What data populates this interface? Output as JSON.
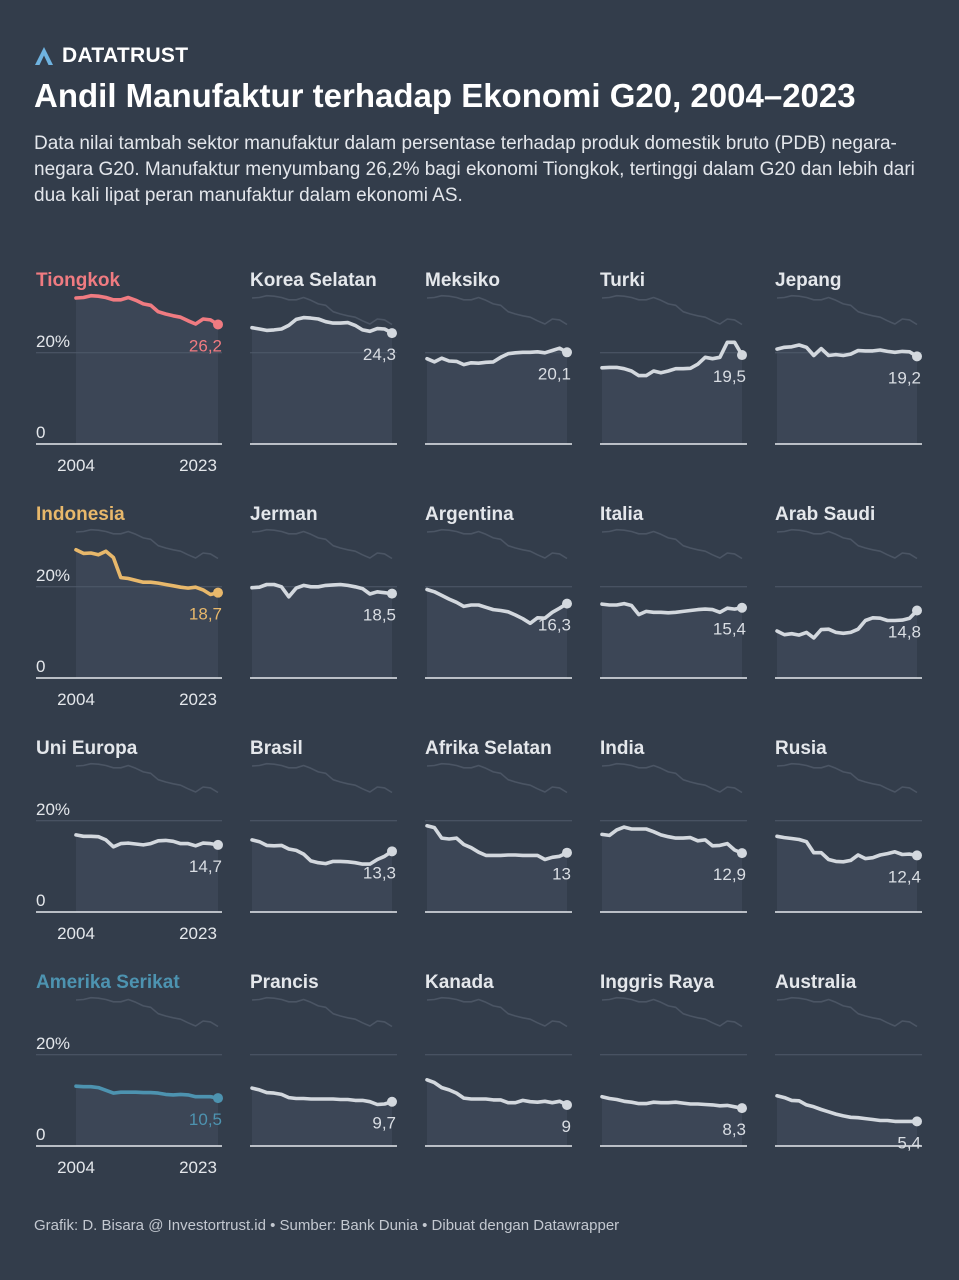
{
  "brand": {
    "name": "DATATRUST",
    "icon": "datatrust-logo-icon",
    "color": "#6fb3e0"
  },
  "title": "Andil Manufaktur terhadap Ekonomi G20, 2004–2023",
  "subtitle": "Data nilai tambah sektor manufaktur dalam persentase terhadap produk domestik bruto (PDB) negara-negara G20. Manufaktur menyumbang 26,2% bagi ekonomi Tiongkok, tertinggi dalam G20 dan lebih dari dua kali lipat peran manufaktur dalam ekonomi AS.",
  "footer": "Grafik: D. Bisara @ Investortrust.id • Sumber: Bank Dunia • Dibuat dengan Datawrapper",
  "colors": {
    "background": "#333d4b",
    "default_line": "#d3d8de",
    "tiongkok": "#f07b81",
    "indonesia": "#e8b86b",
    "amerika_serikat": "#4d93b0",
    "ghost_line": "#4b5564",
    "area": "#3c4656"
  },
  "chart_data": {
    "type": "line",
    "layout": "small-multiples",
    "x": [
      2004,
      2005,
      2006,
      2007,
      2008,
      2009,
      2010,
      2011,
      2012,
      2013,
      2014,
      2015,
      2016,
      2017,
      2018,
      2019,
      2020,
      2021,
      2022,
      2023
    ],
    "x_tick_labels": [
      "2004",
      "2023"
    ],
    "y_tick_labels": [
      "20%",
      "0"
    ],
    "ylim": [
      0,
      32
    ],
    "grid": true,
    "series": [
      {
        "name": "Tiongkok",
        "highlight": "tiongkok",
        "value_label": "26,2",
        "values": [
          32.0,
          32.1,
          32.5,
          32.4,
          32.1,
          31.6,
          31.6,
          32.1,
          31.5,
          30.7,
          30.4,
          29.0,
          28.5,
          28.1,
          27.8,
          27.0,
          26.3,
          27.4,
          27.2,
          26.2
        ]
      },
      {
        "name": "Korea Selatan",
        "value_label": "24,3",
        "values": [
          25.5,
          25.2,
          24.9,
          25.0,
          25.2,
          26.0,
          27.3,
          27.7,
          27.6,
          27.4,
          26.8,
          26.5,
          26.5,
          26.6,
          26.0,
          25.0,
          24.7,
          25.3,
          25.2,
          24.3
        ]
      },
      {
        "name": "Meksiko",
        "value_label": "20,1",
        "values": [
          18.7,
          18.0,
          18.8,
          18.2,
          18.1,
          17.4,
          17.8,
          17.7,
          17.9,
          18.0,
          19.0,
          19.8,
          20.0,
          20.1,
          20.1,
          20.2,
          20.0,
          20.5,
          21.0,
          20.1
        ]
      },
      {
        "name": "Turki",
        "value_label": "19,5",
        "values": [
          16.7,
          16.8,
          16.8,
          16.5,
          16.0,
          15.0,
          15.0,
          16.0,
          15.6,
          16.0,
          16.5,
          16.5,
          16.6,
          17.5,
          19.0,
          18.7,
          19.0,
          22.3,
          22.3,
          19.5
        ]
      },
      {
        "name": "Jepang",
        "value_label": "19,2",
        "values": [
          20.8,
          21.2,
          21.3,
          21.7,
          21.2,
          19.4,
          20.9,
          19.4,
          19.6,
          19.4,
          19.7,
          20.5,
          20.4,
          20.4,
          20.6,
          20.3,
          20.1,
          20.3,
          20.2,
          19.2
        ]
      },
      {
        "name": "Indonesia",
        "highlight": "indonesia",
        "value_label": "18,7",
        "values": [
          28.1,
          27.3,
          27.4,
          27.0,
          27.8,
          26.4,
          22.0,
          21.8,
          21.4,
          21.0,
          21.0,
          20.8,
          20.5,
          20.2,
          19.9,
          19.7,
          19.9,
          19.3,
          18.3,
          18.7
        ]
      },
      {
        "name": "Jerman",
        "value_label": "18,5",
        "values": [
          19.8,
          19.9,
          20.5,
          20.5,
          20.0,
          17.8,
          19.7,
          20.3,
          20.0,
          20.0,
          20.3,
          20.4,
          20.5,
          20.3,
          20.0,
          19.6,
          18.4,
          18.9,
          18.7,
          18.5
        ]
      },
      {
        "name": "Argentina",
        "value_label": "16,3",
        "values": [
          19.4,
          18.9,
          18.1,
          17.3,
          16.6,
          15.7,
          16.0,
          16.0,
          15.5,
          15.0,
          14.8,
          14.5,
          13.8,
          13.0,
          12.0,
          13.2,
          13.1,
          14.4,
          15.3,
          16.3
        ]
      },
      {
        "name": "Italia",
        "value_label": "15,4",
        "values": [
          16.2,
          16.0,
          16.0,
          16.3,
          15.9,
          13.9,
          14.6,
          14.4,
          14.4,
          14.3,
          14.4,
          14.6,
          14.8,
          15.0,
          15.1,
          15.0,
          14.4,
          15.3,
          15.1,
          15.4
        ]
      },
      {
        "name": "Arab Saudi",
        "value_label": "14,8",
        "values": [
          10.3,
          9.5,
          9.7,
          9.4,
          10.0,
          8.8,
          10.6,
          10.7,
          10.0,
          9.8,
          10.0,
          10.7,
          12.6,
          13.2,
          13.1,
          12.6,
          12.6,
          12.7,
          13.1,
          14.8
        ]
      },
      {
        "name": "Uni Europa",
        "value_label": "14,7",
        "values": [
          16.9,
          16.6,
          16.6,
          16.5,
          15.8,
          14.3,
          15.0,
          15.1,
          14.9,
          14.7,
          15.0,
          15.6,
          15.7,
          15.5,
          15.0,
          15.0,
          14.5,
          15.1,
          15.0,
          14.7
        ]
      },
      {
        "name": "Brasil",
        "value_label": "13,3",
        "values": [
          15.8,
          15.4,
          14.6,
          14.5,
          14.6,
          13.8,
          13.5,
          12.7,
          11.2,
          10.8,
          10.6,
          11.1,
          11.1,
          11.0,
          10.8,
          10.5,
          10.5,
          11.5,
          12.2,
          13.3
        ]
      },
      {
        "name": "Afrika Selatan",
        "value_label": "13",
        "values": [
          18.9,
          18.5,
          16.2,
          16.0,
          16.2,
          14.8,
          14.1,
          13.1,
          12.4,
          12.4,
          12.4,
          12.5,
          12.5,
          12.4,
          12.4,
          12.4,
          11.5,
          12.0,
          12.2,
          13.0
        ]
      },
      {
        "name": "India",
        "value_label": "12,9",
        "values": [
          17.0,
          16.8,
          18.0,
          18.6,
          18.2,
          18.2,
          18.2,
          17.6,
          16.9,
          16.5,
          16.2,
          16.2,
          16.3,
          15.6,
          15.8,
          14.5,
          14.6,
          15.0,
          13.6,
          12.9
        ]
      },
      {
        "name": "Rusia",
        "value_label": "12,4",
        "values": [
          16.6,
          16.3,
          16.1,
          15.9,
          15.4,
          13.0,
          13.0,
          11.5,
          11.1,
          11.0,
          11.3,
          12.5,
          11.7,
          11.9,
          12.5,
          12.8,
          13.2,
          12.6,
          12.7,
          12.4
        ]
      },
      {
        "name": "Amerika Serikat",
        "highlight": "amerika_serikat",
        "value_label": "10,5",
        "values": [
          13.1,
          13.0,
          13.0,
          12.8,
          12.2,
          11.6,
          11.8,
          11.8,
          11.8,
          11.7,
          11.7,
          11.6,
          11.3,
          11.2,
          11.3,
          11.2,
          10.8,
          10.8,
          10.8,
          10.5
        ]
      },
      {
        "name": "Prancis",
        "value_label": "9,7",
        "values": [
          12.7,
          12.3,
          11.7,
          11.6,
          11.3,
          10.6,
          10.4,
          10.4,
          10.3,
          10.3,
          10.3,
          10.3,
          10.2,
          10.2,
          10.0,
          10.0,
          9.7,
          9.1,
          9.2,
          9.7
        ]
      },
      {
        "name": "Kanada",
        "value_label": "9",
        "values": [
          14.5,
          13.9,
          12.8,
          12.3,
          11.6,
          10.5,
          10.3,
          10.3,
          10.3,
          10.1,
          10.1,
          9.5,
          9.5,
          10.0,
          9.7,
          9.6,
          9.8,
          9.5,
          9.8,
          9.0
        ]
      },
      {
        "name": "Inggris Raya",
        "value_label": "8,3",
        "values": [
          10.8,
          10.4,
          10.2,
          9.8,
          9.6,
          9.3,
          9.3,
          9.6,
          9.5,
          9.5,
          9.6,
          9.4,
          9.2,
          9.2,
          9.1,
          9.0,
          8.8,
          8.9,
          8.6,
          8.3
        ]
      },
      {
        "name": "Australia",
        "value_label": "5,4",
        "values": [
          11.0,
          10.6,
          10.0,
          9.9,
          9.0,
          8.6,
          8.0,
          7.5,
          7.0,
          6.6,
          6.3,
          6.2,
          6.0,
          5.8,
          5.6,
          5.6,
          5.4,
          5.4,
          5.4,
          5.4
        ]
      }
    ]
  }
}
